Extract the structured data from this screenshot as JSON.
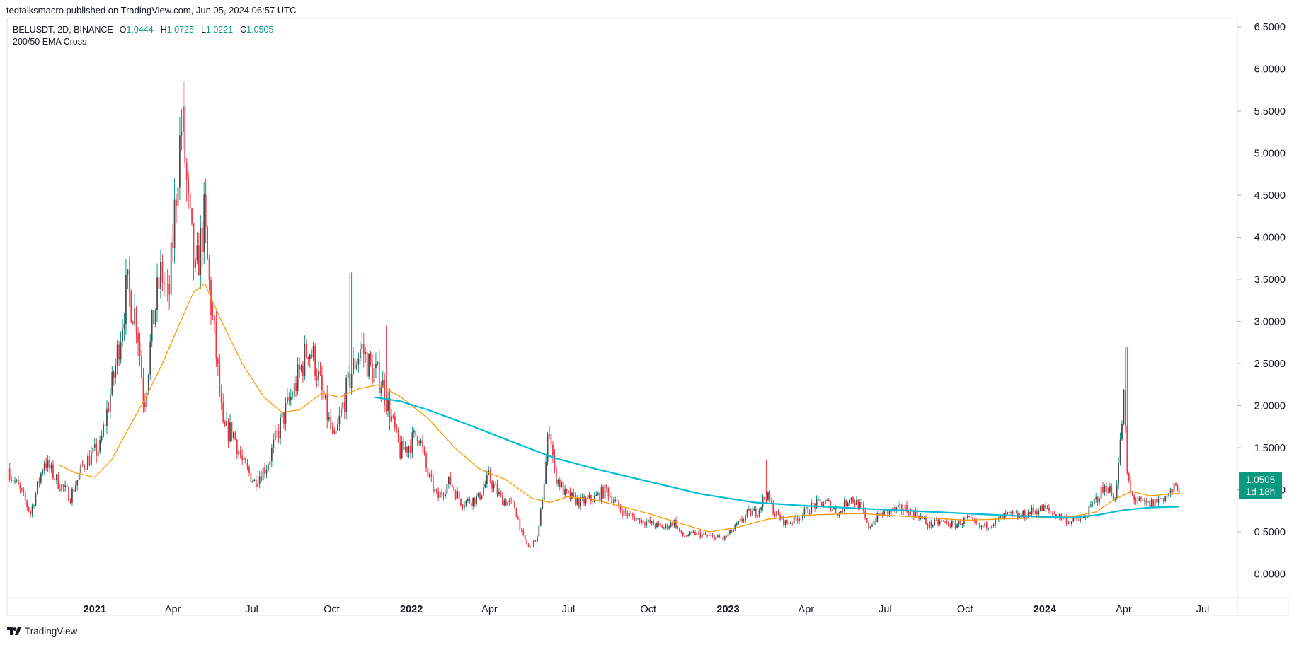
{
  "header": {
    "published": "tedtalksmacro published on TradingView.com, Jun 05, 2024 06:57 UTC"
  },
  "legend": {
    "symbol": "BELUSDT, 2D, BINANCE",
    "o_label": "O",
    "o_value": "1.0444",
    "h_label": "H",
    "h_value": "1.0725",
    "l_label": "L",
    "l_value": "1.0221",
    "c_label": "C",
    "c_value": "1.0505",
    "indicator": "200/50 EMA Cross"
  },
  "price_tag": {
    "price": "1.0505",
    "countdown": "1d 18h"
  },
  "footer": {
    "brand": "TradingView"
  },
  "colors": {
    "up": "#089981",
    "down": "#f23645",
    "candle_dark": "#4a4a4a",
    "ema_long": "#00bcd4",
    "ema_short": "#ff9800",
    "grid": "#e0e3eb"
  },
  "chart_data": {
    "type": "candlestick",
    "title": "BELUSDT, 2D, BINANCE",
    "y_axis": {
      "ticks": [
        "6.5000",
        "6.0000",
        "5.5000",
        "5.0000",
        "4.5000",
        "4.0000",
        "3.5000",
        "3.0000",
        "2.5000",
        "2.0000",
        "1.5000",
        "1.0000",
        "0.5000",
        "0.0000"
      ],
      "ylim": [
        -0.28,
        6.6
      ]
    },
    "x_axis": {
      "ticks": [
        {
          "label": "2021",
          "bold": true,
          "date": "2021-01-01"
        },
        {
          "label": "Apr",
          "bold": false,
          "date": "2021-04-01"
        },
        {
          "label": "Jul",
          "bold": false,
          "date": "2021-07-01"
        },
        {
          "label": "Oct",
          "bold": false,
          "date": "2021-10-01"
        },
        {
          "label": "2022",
          "bold": true,
          "date": "2022-01-01"
        },
        {
          "label": "Apr",
          "bold": false,
          "date": "2022-04-01"
        },
        {
          "label": "Jul",
          "bold": false,
          "date": "2022-07-01"
        },
        {
          "label": "Oct",
          "bold": false,
          "date": "2022-10-01"
        },
        {
          "label": "2023",
          "bold": true,
          "date": "2023-01-01"
        },
        {
          "label": "Apr",
          "bold": false,
          "date": "2023-04-01"
        },
        {
          "label": "Jul",
          "bold": false,
          "date": "2023-07-01"
        },
        {
          "label": "Oct",
          "bold": false,
          "date": "2023-10-01"
        },
        {
          "label": "2024",
          "bold": true,
          "date": "2024-01-01"
        },
        {
          "label": "Apr",
          "bold": false,
          "date": "2024-04-01"
        },
        {
          "label": "Jul",
          "bold": false,
          "date": "2024-07-01"
        }
      ]
    },
    "price_anchors": [
      [
        "2020-09-24",
        1.25
      ],
      [
        "2020-10-10",
        0.95
      ],
      [
        "2020-10-20",
        0.72
      ],
      [
        "2020-11-05",
        1.35
      ],
      [
        "2020-11-20",
        1.1
      ],
      [
        "2020-12-05",
        0.92
      ],
      [
        "2020-12-20",
        1.3
      ],
      [
        "2021-01-08",
        1.5
      ],
      [
        "2021-01-25",
        2.4
      ],
      [
        "2021-02-08",
        3.4
      ],
      [
        "2021-02-20",
        3.0
      ],
      [
        "2021-02-28",
        2.0
      ],
      [
        "2021-03-10",
        3.0
      ],
      [
        "2021-03-20",
        3.6
      ],
      [
        "2021-03-28",
        3.2
      ],
      [
        "2021-04-08",
        4.9
      ],
      [
        "2021-04-13",
        5.4
      ],
      [
        "2021-04-20",
        4.3
      ],
      [
        "2021-04-28",
        3.5
      ],
      [
        "2021-05-08",
        4.2
      ],
      [
        "2021-05-15",
        3.3
      ],
      [
        "2021-05-22",
        2.6
      ],
      [
        "2021-05-30",
        1.7
      ],
      [
        "2021-06-10",
        1.7
      ],
      [
        "2021-06-22",
        1.3
      ],
      [
        "2021-07-05",
        1.1
      ],
      [
        "2021-07-20",
        1.3
      ],
      [
        "2021-08-05",
        1.8
      ],
      [
        "2021-08-20",
        2.2
      ],
      [
        "2021-09-05",
        2.7
      ],
      [
        "2021-09-12",
        2.55
      ],
      [
        "2021-09-22",
        2.1
      ],
      [
        "2021-10-05",
        1.55
      ],
      [
        "2021-10-15",
        2.0
      ],
      [
        "2021-10-25",
        2.4
      ],
      [
        "2021-11-05",
        2.7
      ],
      [
        "2021-11-15",
        2.45
      ],
      [
        "2021-11-28",
        2.3
      ],
      [
        "2021-12-06",
        2.0
      ],
      [
        "2021-12-20",
        1.45
      ],
      [
        "2022-01-01",
        1.55
      ],
      [
        "2022-01-10",
        1.7
      ],
      [
        "2022-01-20",
        1.2
      ],
      [
        "2022-02-01",
        0.9
      ],
      [
        "2022-02-15",
        1.1
      ],
      [
        "2022-03-01",
        0.85
      ],
      [
        "2022-03-20",
        0.9
      ],
      [
        "2022-04-01",
        1.15
      ],
      [
        "2022-04-15",
        0.9
      ],
      [
        "2022-05-01",
        0.8
      ],
      [
        "2022-05-10",
        0.45
      ],
      [
        "2022-05-18",
        0.3
      ],
      [
        "2022-05-28",
        0.45
      ],
      [
        "2022-06-05",
        1.2
      ],
      [
        "2022-06-10",
        1.8
      ],
      [
        "2022-06-16",
        1.2
      ],
      [
        "2022-06-28",
        0.95
      ],
      [
        "2022-07-15",
        0.85
      ],
      [
        "2022-08-01",
        0.9
      ],
      [
        "2022-08-15",
        1.0
      ],
      [
        "2022-09-01",
        0.75
      ],
      [
        "2022-09-20",
        0.65
      ],
      [
        "2022-10-05",
        0.6
      ],
      [
        "2022-10-20",
        0.55
      ],
      [
        "2022-11-01",
        0.62
      ],
      [
        "2022-11-10",
        0.45
      ],
      [
        "2022-11-25",
        0.48
      ],
      [
        "2022-12-10",
        0.45
      ],
      [
        "2022-12-28",
        0.42
      ],
      [
        "2023-01-10",
        0.55
      ],
      [
        "2023-01-25",
        0.72
      ],
      [
        "2023-02-05",
        0.75
      ],
      [
        "2023-02-15",
        0.95
      ],
      [
        "2023-02-25",
        0.72
      ],
      [
        "2023-03-10",
        0.6
      ],
      [
        "2023-03-25",
        0.68
      ],
      [
        "2023-04-10",
        0.82
      ],
      [
        "2023-04-25",
        0.85
      ],
      [
        "2023-05-10",
        0.72
      ],
      [
        "2023-05-22",
        0.92
      ],
      [
        "2023-06-05",
        0.78
      ],
      [
        "2023-06-12",
        0.55
      ],
      [
        "2023-06-25",
        0.7
      ],
      [
        "2023-07-10",
        0.75
      ],
      [
        "2023-07-25",
        0.78
      ],
      [
        "2023-08-10",
        0.7
      ],
      [
        "2023-08-20",
        0.58
      ],
      [
        "2023-09-05",
        0.62
      ],
      [
        "2023-09-20",
        0.58
      ],
      [
        "2023-10-05",
        0.65
      ],
      [
        "2023-10-20",
        0.55
      ],
      [
        "2023-11-05",
        0.62
      ],
      [
        "2023-11-20",
        0.7
      ],
      [
        "2023-12-05",
        0.68
      ],
      [
        "2023-12-20",
        0.75
      ],
      [
        "2024-01-01",
        0.78
      ],
      [
        "2024-01-15",
        0.7
      ],
      [
        "2024-02-01",
        0.62
      ],
      [
        "2024-02-15",
        0.65
      ],
      [
        "2024-02-25",
        0.8
      ],
      [
        "2024-03-05",
        0.95
      ],
      [
        "2024-03-15",
        1.05
      ],
      [
        "2024-03-22",
        0.85
      ],
      [
        "2024-03-28",
        1.4
      ],
      [
        "2024-04-02",
        2.1
      ],
      [
        "2024-04-06",
        1.2
      ],
      [
        "2024-04-10",
        0.95
      ],
      [
        "2024-04-20",
        0.85
      ],
      [
        "2024-05-01",
        0.82
      ],
      [
        "2024-05-15",
        0.9
      ],
      [
        "2024-05-25",
        0.95
      ],
      [
        "2024-06-03",
        1.05
      ]
    ],
    "wick_spikes": [
      [
        "2021-04-13",
        5.85
      ],
      [
        "2021-10-22",
        3.58
      ],
      [
        "2021-12-02",
        2.95
      ],
      [
        "2022-06-10",
        2.35
      ],
      [
        "2023-02-13",
        1.35
      ],
      [
        "2024-04-03",
        2.7
      ],
      [
        "2021-01-12",
        1.52
      ]
    ],
    "ema_long": [
      [
        "2021-11-20",
        2.1
      ],
      [
        "2021-12-20",
        2.05
      ],
      [
        "2022-01-20",
        1.95
      ],
      [
        "2022-03-01",
        1.8
      ],
      [
        "2022-04-15",
        1.62
      ],
      [
        "2022-05-20",
        1.48
      ],
      [
        "2022-06-15",
        1.38
      ],
      [
        "2022-08-01",
        1.25
      ],
      [
        "2022-10-01",
        1.1
      ],
      [
        "2022-12-01",
        0.95
      ],
      [
        "2023-02-01",
        0.85
      ],
      [
        "2023-04-01",
        0.81
      ],
      [
        "2023-06-01",
        0.78
      ],
      [
        "2023-08-01",
        0.75
      ],
      [
        "2023-10-01",
        0.72
      ],
      [
        "2023-12-01",
        0.69
      ],
      [
        "2024-02-01",
        0.67
      ],
      [
        "2024-03-01",
        0.7
      ],
      [
        "2024-04-01",
        0.76
      ],
      [
        "2024-05-01",
        0.79
      ],
      [
        "2024-06-04",
        0.8
      ]
    ],
    "ema_short": [
      [
        "2020-11-20",
        1.3
      ],
      [
        "2020-12-10",
        1.2
      ],
      [
        "2021-01-01",
        1.15
      ],
      [
        "2021-01-20",
        1.35
      ],
      [
        "2021-02-10",
        1.75
      ],
      [
        "2021-03-01",
        2.1
      ],
      [
        "2021-03-20",
        2.5
      ],
      [
        "2021-04-10",
        3.0
      ],
      [
        "2021-04-25",
        3.35
      ],
      [
        "2021-05-08",
        3.45
      ],
      [
        "2021-05-25",
        3.05
      ],
      [
        "2021-06-20",
        2.5
      ],
      [
        "2021-07-15",
        2.1
      ],
      [
        "2021-08-05",
        1.92
      ],
      [
        "2021-08-25",
        1.95
      ],
      [
        "2021-09-20",
        2.15
      ],
      [
        "2021-10-10",
        2.1
      ],
      [
        "2021-11-01",
        2.2
      ],
      [
        "2021-11-25",
        2.25
      ],
      [
        "2021-12-20",
        2.1
      ],
      [
        "2022-01-20",
        1.85
      ],
      [
        "2022-02-20",
        1.5
      ],
      [
        "2022-03-20",
        1.25
      ],
      [
        "2022-04-20",
        1.12
      ],
      [
        "2022-05-20",
        0.9
      ],
      [
        "2022-06-10",
        0.85
      ],
      [
        "2022-06-30",
        0.92
      ],
      [
        "2022-08-01",
        0.88
      ],
      [
        "2022-09-01",
        0.8
      ],
      [
        "2022-10-01",
        0.72
      ],
      [
        "2022-11-01",
        0.62
      ],
      [
        "2022-12-10",
        0.5
      ],
      [
        "2023-01-10",
        0.55
      ],
      [
        "2023-02-15",
        0.65
      ],
      [
        "2023-04-01",
        0.7
      ],
      [
        "2023-06-01",
        0.72
      ],
      [
        "2023-08-01",
        0.68
      ],
      [
        "2023-10-01",
        0.64
      ],
      [
        "2023-12-01",
        0.66
      ],
      [
        "2024-02-01",
        0.68
      ],
      [
        "2024-03-01",
        0.74
      ],
      [
        "2024-03-20",
        0.88
      ],
      [
        "2024-04-10",
        0.98
      ],
      [
        "2024-05-01",
        0.93
      ],
      [
        "2024-06-04",
        0.96
      ]
    ],
    "last_price": 1.0505
  }
}
